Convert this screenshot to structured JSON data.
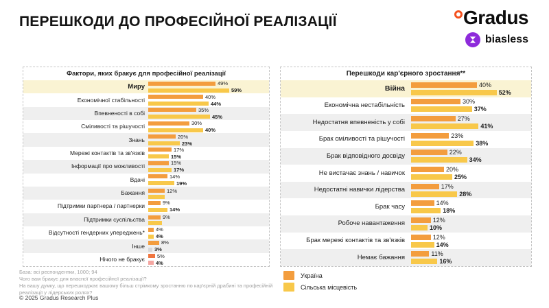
{
  "header": {
    "title": "ПЕРЕШКОДИ ДО ПРОФЕСІЙНОЇ РЕАЛІЗАЦІЇ",
    "logo_gradus": "Gradus",
    "logo_biasless": "biasless"
  },
  "colors": {
    "ukraine": "#F39D3E",
    "rural": "#F8C84A",
    "highlight_row": "#FAF3D3",
    "stripe_row": "#EFEFEF",
    "grey_bar": "#D8D8D8",
    "pink_bar": "#F4A6A1",
    "red_orange_bar": "#F07640",
    "gradus_degree": "#F4511E",
    "biasless_purple": "#8E2BDB"
  },
  "legend": {
    "items": [
      {
        "label": "Україна",
        "color": "#F39D3E"
      },
      {
        "label": "Сільська місцевість",
        "color": "#F8C84A"
      }
    ]
  },
  "footer": {
    "base": "База: всі респондентки, 1000; 94",
    "q1": "Чого вам бракує для власної професійної реалізації?",
    "q2": "На вашу думку, що перешкоджає вашому більш стрімкому зростанню по кар'єрній драбині та професійній реалізації у лідерських ролях?",
    "copyright": "© 2025 Gradus Research Plus"
  },
  "chart_data": [
    {
      "type": "bar",
      "orientation": "horizontal",
      "title": "Фактори, яких бракує для професійної реалізації",
      "series_names": [
        "Україна",
        "Сільська місцевість"
      ],
      "value_unit": "%",
      "xlim": [
        0,
        88
      ],
      "legend_position": "bottom-right-panel",
      "grid": false,
      "rows": [
        {
          "label": "Миру",
          "highlight": true,
          "ua": 49,
          "rural": 59
        },
        {
          "label": "Економічної стабільності",
          "ua": 40,
          "rural": 44
        },
        {
          "label": "Впевненості в собі",
          "ua": 35,
          "rural": 45
        },
        {
          "label": "Сміливості та рішучості",
          "ua": 30,
          "rural": 40
        },
        {
          "label": "Знань",
          "ua": 20,
          "rural": 23
        },
        {
          "label": "Мережі контактів та зв'язків",
          "ua": 17,
          "rural": 15
        },
        {
          "label": "Інформації про можливості",
          "ua": 15,
          "rural": 17
        },
        {
          "label": "Вдачі",
          "ua": 14,
          "rural": 19
        },
        {
          "label": "Бажання",
          "ua": 12,
          "rural": 12,
          "rural_label": ""
        },
        {
          "label": "Підтримки партнера / партнерки",
          "ua": 9,
          "rural": 14
        },
        {
          "label": "Підтримки суспільства",
          "ua": 9,
          "rural": 10,
          "rural_label": ""
        },
        {
          "label": "Відсутності гендерних упереджень*",
          "ua": 4,
          "rural": 4
        },
        {
          "label": "Інше",
          "ua": 8,
          "rural": 3,
          "rural_color": "#D8D8D8"
        },
        {
          "label": "Нічого не бракує",
          "ua": 5,
          "rural": 4,
          "ua_color": "#F07640",
          "rural_color": "#F4A6A1"
        }
      ]
    },
    {
      "type": "bar",
      "orientation": "horizontal",
      "title": "Перешкоди кар'єрного зростання**",
      "series_names": [
        "Україна",
        "Сільська місцевість"
      ],
      "value_unit": "%",
      "xlim": [
        0,
        73
      ],
      "legend_position": "bottom-left-of-panel",
      "grid": false,
      "rows": [
        {
          "label": "Війна",
          "highlight": true,
          "ua": 40,
          "rural": 52
        },
        {
          "label": "Економічна нестабільність",
          "ua": 30,
          "rural": 37
        },
        {
          "label": "Недостатня впевненість у собі",
          "ua": 27,
          "rural": 41
        },
        {
          "label": "Брак сміливості та рішучості",
          "ua": 23,
          "rural": 38
        },
        {
          "label": "Брак відповідного досвіду",
          "ua": 22,
          "rural": 34
        },
        {
          "label": "Не вистачає знань / навичок",
          "ua": 20,
          "rural": 25
        },
        {
          "label": "Недостатні навички лідерства",
          "ua": 17,
          "rural": 28
        },
        {
          "label": "Брак часу",
          "ua": 14,
          "rural": 18
        },
        {
          "label": "Робоче навантаження",
          "ua": 12,
          "rural": 10
        },
        {
          "label": "Брак мережі контактів та зв'язків",
          "ua": 12,
          "rural": 14
        },
        {
          "label": "Немає бажання",
          "ua": 11,
          "rural": 16
        }
      ]
    }
  ]
}
